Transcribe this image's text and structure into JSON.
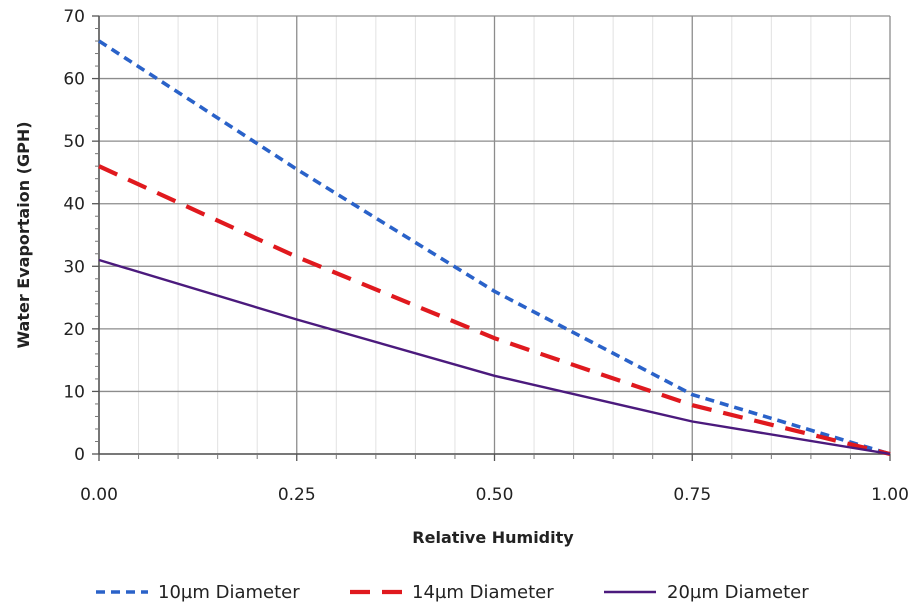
{
  "chart_data": {
    "type": "line",
    "title": "",
    "xlabel": "Relative Humidity",
    "ylabel": "Water Evaportaion (GPH)",
    "xlim": [
      0,
      1
    ],
    "ylim": [
      0,
      70
    ],
    "x_ticks": [
      0,
      0.25,
      0.5,
      0.75,
      1
    ],
    "x_tick_labels": [
      "0.00",
      "0.25",
      "0.50",
      "0.75",
      "1.00"
    ],
    "y_ticks": [
      0,
      10,
      20,
      30,
      40,
      50,
      60,
      70
    ],
    "y_tick_labels": [
      "0",
      "10",
      "20",
      "30",
      "40",
      "50",
      "60",
      "70"
    ],
    "grid": true,
    "legend_position": "bottom",
    "series": [
      {
        "name": "10µm Diameter",
        "color": "#2a62c9",
        "style": "dotted",
        "points": [
          [
            0,
            66
          ],
          [
            0.25,
            45.5
          ],
          [
            0.5,
            26
          ],
          [
            0.75,
            9.5
          ],
          [
            1,
            0
          ]
        ]
      },
      {
        "name": "14µm Diameter",
        "color": "#e0191e",
        "style": "dashed",
        "points": [
          [
            0,
            46
          ],
          [
            0.25,
            31.5
          ],
          [
            0.5,
            18.5
          ],
          [
            0.75,
            7.8
          ],
          [
            1,
            0
          ]
        ]
      },
      {
        "name": "20µm Diameter",
        "color": "#4b1a7d",
        "style": "solid",
        "points": [
          [
            0,
            31
          ],
          [
            0.25,
            21.5
          ],
          [
            0.5,
            12.5
          ],
          [
            0.75,
            5.2
          ],
          [
            1,
            0
          ]
        ]
      }
    ]
  }
}
